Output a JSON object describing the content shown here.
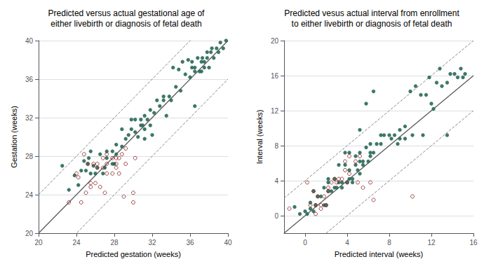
{
  "chart_data": [
    {
      "type": "scatter",
      "title": "Predicted versus actual gestational age of\neither livebirth or diagnosis of fetal death",
      "xlabel": "Predicted gestation (weeks)",
      "ylabel": "Gestation (weeks)",
      "xlim": [
        20,
        40
      ],
      "ylim": [
        20,
        40
      ],
      "xticks": [
        20,
        24,
        28,
        32,
        36,
        40
      ],
      "yticks": [
        20,
        24,
        28,
        32,
        36,
        40
      ],
      "grid": "y",
      "series": [
        {
          "type": "line",
          "color": "#5a5a5a",
          "line_style": "solid",
          "values": [
            [
              20,
              20
            ],
            [
              40,
              40
            ]
          ]
        },
        {
          "type": "line",
          "color": "#888888",
          "line_style": "dashed",
          "values": [
            [
              20,
              24
            ],
            [
              40,
              44
            ]
          ]
        },
        {
          "type": "line",
          "color": "#888888",
          "line_style": "dashed",
          "values": [
            [
              20,
              16
            ],
            [
              40,
              36
            ]
          ]
        },
        {
          "type": "scatter",
          "color": "#2d6b5a",
          "marker": "filled",
          "values": [
            [
              22.5,
              27.0
            ],
            [
              23.2,
              24.5
            ],
            [
              23.8,
              26.0
            ],
            [
              24.2,
              25.0
            ],
            [
              24.5,
              26.5
            ],
            [
              24.8,
              27.5
            ],
            [
              25.0,
              26.5
            ],
            [
              25.2,
              27.2
            ],
            [
              25.3,
              27.8
            ],
            [
              25.5,
              28.5
            ],
            [
              25.5,
              26.2
            ],
            [
              25.8,
              27.0
            ],
            [
              26.0,
              26.2
            ],
            [
              26.2,
              26.8
            ],
            [
              26.5,
              28.2
            ],
            [
              27.2,
              28.5
            ],
            [
              27.8,
              28.5
            ],
            [
              28.2,
              29.2
            ],
            [
              28.8,
              29.0
            ],
            [
              29.2,
              29.8
            ],
            [
              29.5,
              30.2
            ],
            [
              30.2,
              30.5
            ],
            [
              30.5,
              30.0
            ],
            [
              30.8,
              31.2
            ],
            [
              31.0,
              31.2
            ],
            [
              31.2,
              32.2
            ],
            [
              31.5,
              31.8
            ],
            [
              31.8,
              32.8
            ],
            [
              32.0,
              30.2
            ],
            [
              32.2,
              32.5
            ],
            [
              32.8,
              33.2
            ],
            [
              33.2,
              33.8
            ],
            [
              33.8,
              34.2
            ],
            [
              34.2,
              37.2
            ],
            [
              34.8,
              37.0
            ],
            [
              35.2,
              37.8
            ],
            [
              35.8,
              38.0
            ],
            [
              36.2,
              37.8
            ],
            [
              36.5,
              37.2
            ],
            [
              36.8,
              38.2
            ],
            [
              37.2,
              37.8
            ],
            [
              37.3,
              38.2
            ],
            [
              37.5,
              37.8
            ],
            [
              37.8,
              38.8
            ],
            [
              38.0,
              37.2
            ],
            [
              38.2,
              38.8
            ],
            [
              38.3,
              39.2
            ],
            [
              38.5,
              38.2
            ],
            [
              38.8,
              39.2
            ],
            [
              39.0,
              38.8
            ],
            [
              39.2,
              39.8
            ],
            [
              39.5,
              39.2
            ],
            [
              39.8,
              40.0
            ],
            [
              33.5,
              32.2
            ],
            [
              34.0,
              33.8
            ],
            [
              34.5,
              35.2
            ],
            [
              35.0,
              34.8
            ],
            [
              35.5,
              36.5
            ],
            [
              36.0,
              36.2
            ],
            [
              36.2,
              37.2
            ],
            [
              36.5,
              36.8
            ],
            [
              37.0,
              36.8
            ],
            [
              37.2,
              36.8
            ],
            [
              37.5,
              37.2
            ],
            [
              37.8,
              38.2
            ],
            [
              30.2,
              31.8
            ],
            [
              30.8,
              31.8
            ],
            [
              31.2,
              30.8
            ],
            [
              31.8,
              31.2
            ],
            [
              28.8,
              30.8
            ],
            [
              29.8,
              30.8
            ],
            [
              32.5,
              33.8
            ],
            [
              33.2,
              34.2
            ],
            [
              27.8,
              27.2
            ],
            [
              28.2,
              28.2
            ],
            [
              36.5,
              33.2
            ],
            [
              26.8,
              26.2
            ],
            [
              27.0,
              26.8
            ],
            [
              27.2,
              27.8
            ],
            [
              28.0,
              27.2
            ],
            [
              31.2,
              29.8
            ],
            [
              29.8,
              31.8
            ]
          ]
        },
        {
          "type": "scatter",
          "color": "#8b2020",
          "marker": "open",
          "values": [
            [
              23.2,
              23.2
            ],
            [
              24.2,
              25.8
            ],
            [
              24.0,
              26.2
            ],
            [
              24.5,
              23.2
            ],
            [
              24.8,
              28.2
            ],
            [
              25.0,
              24.2
            ],
            [
              25.2,
              27.2
            ],
            [
              25.5,
              24.8
            ],
            [
              25.5,
              25.2
            ],
            [
              25.8,
              27.2
            ],
            [
              26.0,
              25.2
            ],
            [
              26.2,
              26.8
            ],
            [
              26.2,
              27.2
            ],
            [
              26.5,
              24.8
            ],
            [
              26.8,
              26.8
            ],
            [
              26.8,
              27.8
            ],
            [
              27.0,
              24.2
            ],
            [
              27.2,
              26.2
            ],
            [
              27.2,
              27.2
            ],
            [
              27.2,
              28.2
            ],
            [
              27.8,
              26.2
            ],
            [
              27.8,
              27.8
            ],
            [
              28.2,
              26.8
            ],
            [
              28.2,
              27.2
            ],
            [
              28.2,
              27.8
            ],
            [
              28.5,
              26.2
            ],
            [
              28.5,
              27.8
            ],
            [
              28.8,
              28.2
            ],
            [
              29.0,
              23.8
            ],
            [
              29.2,
              27.2
            ],
            [
              29.2,
              28.8
            ],
            [
              30.0,
              23.2
            ],
            [
              30.0,
              24.2
            ],
            [
              30.2,
              27.8
            ]
          ]
        }
      ]
    },
    {
      "type": "scatter",
      "title": "Predicted vesus actual interval from enrollment\nto either livebirth or diagnosis of fetal death",
      "xlabel": "Predicted interval (weeks)",
      "ylabel": "Interval (weeks)",
      "xlim": [
        -2,
        16
      ],
      "ylim": [
        -2,
        20
      ],
      "xticks": [
        0,
        4,
        8,
        12,
        16
      ],
      "yticks": [
        0,
        4,
        8,
        12,
        16,
        20
      ],
      "grid": "y",
      "series": [
        {
          "type": "line",
          "color": "#5a5a5a",
          "line_style": "solid",
          "values": [
            [
              -2,
              -2
            ],
            [
              16,
              16
            ]
          ]
        },
        {
          "type": "line",
          "color": "#888888",
          "line_style": "dashed",
          "values": [
            [
              -2,
              2
            ],
            [
              16,
              20
            ]
          ]
        },
        {
          "type": "line",
          "color": "#888888",
          "line_style": "dashed",
          "values": [
            [
              -2,
              -6
            ],
            [
              16,
              12
            ]
          ]
        },
        {
          "type": "scatter",
          "color": "#2d6b5a",
          "marker": "filled",
          "values": [
            [
              -1.0,
              1.0
            ],
            [
              0.0,
              0.5
            ],
            [
              0.5,
              1.5
            ],
            [
              0.8,
              0.5
            ],
            [
              1.0,
              1.2
            ],
            [
              1.2,
              2.2
            ],
            [
              1.5,
              2.2
            ],
            [
              1.8,
              3.2
            ],
            [
              2.0,
              1.2
            ],
            [
              2.2,
              2.8
            ],
            [
              2.2,
              3.8
            ],
            [
              2.5,
              2.8
            ],
            [
              2.8,
              3.2
            ],
            [
              2.8,
              4.2
            ],
            [
              3.0,
              3.2
            ],
            [
              3.2,
              3.8
            ],
            [
              3.5,
              3.2
            ],
            [
              3.5,
              3.8
            ],
            [
              3.8,
              5.8
            ],
            [
              4.0,
              3.8
            ],
            [
              4.2,
              4.2
            ],
            [
              4.2,
              5.2
            ],
            [
              4.5,
              3.8
            ],
            [
              4.8,
              5.8
            ],
            [
              4.8,
              6.8
            ],
            [
              5.0,
              5.2
            ],
            [
              5.2,
              6.2
            ],
            [
              5.2,
              7.2
            ],
            [
              5.5,
              5.8
            ],
            [
              5.5,
              6.2
            ],
            [
              5.8,
              7.8
            ],
            [
              6.0,
              6.2
            ],
            [
              6.2,
              7.2
            ],
            [
              6.2,
              8.2
            ],
            [
              6.5,
              7.2
            ],
            [
              6.8,
              8.2
            ],
            [
              7.2,
              9.2
            ],
            [
              7.5,
              9.2
            ],
            [
              8.0,
              9.2
            ],
            [
              8.5,
              9.2
            ],
            [
              9.0,
              9.8
            ],
            [
              9.5,
              10.2
            ],
            [
              10.0,
              14.2
            ],
            [
              10.5,
              14.8
            ],
            [
              11.0,
              13.8
            ],
            [
              11.5,
              13.8
            ],
            [
              11.8,
              15.8
            ],
            [
              12.0,
              12.8
            ],
            [
              12.5,
              15.2
            ],
            [
              12.8,
              16.8
            ],
            [
              13.0,
              14.8
            ],
            [
              13.5,
              15.2
            ],
            [
              13.8,
              16.2
            ],
            [
              14.2,
              16.2
            ],
            [
              14.5,
              15.8
            ],
            [
              14.8,
              16.8
            ],
            [
              15.0,
              15.8
            ],
            [
              15.2,
              16.2
            ],
            [
              9.0,
              8.8
            ],
            [
              9.5,
              8.8
            ],
            [
              10.2,
              9.2
            ],
            [
              8.8,
              8.2
            ],
            [
              11.2,
              9.2
            ],
            [
              12.2,
              12.2
            ],
            [
              6.5,
              14.2
            ],
            [
              5.8,
              12.8
            ],
            [
              4.2,
              7.2
            ],
            [
              3.2,
              5.8
            ],
            [
              -0.5,
              0.2
            ],
            [
              0.2,
              0.2
            ],
            [
              7.2,
              8.2
            ],
            [
              8.2,
              8.8
            ],
            [
              5.2,
              4.8
            ],
            [
              6.2,
              6.8
            ],
            [
              3.8,
              7.2
            ],
            [
              5.2,
              9.8
            ],
            [
              4.5,
              4.2
            ],
            [
              2.2,
              4.2
            ],
            [
              0.8,
              2.8
            ],
            [
              1.8,
              1.2
            ],
            [
              0.5,
              0.8
            ],
            [
              13.5,
              9.2
            ]
          ]
        },
        {
          "type": "scatter",
          "color": "#8b2020",
          "marker": "open",
          "values": [
            [
              -1.5,
              0.8
            ],
            [
              0.2,
              3.8
            ],
            [
              0.5,
              1.2
            ],
            [
              0.8,
              2.8
            ],
            [
              1.0,
              0.2
            ],
            [
              1.0,
              1.2
            ],
            [
              1.2,
              2.2
            ],
            [
              1.5,
              0.8
            ],
            [
              1.5,
              1.2
            ],
            [
              1.8,
              2.2
            ],
            [
              2.0,
              1.2
            ],
            [
              2.2,
              2.8
            ],
            [
              2.2,
              3.2
            ],
            [
              2.5,
              3.8
            ],
            [
              2.8,
              4.2
            ],
            [
              3.0,
              3.8
            ],
            [
              3.2,
              4.2
            ],
            [
              3.5,
              4.2
            ],
            [
              3.8,
              5.2
            ],
            [
              3.8,
              6.2
            ],
            [
              4.0,
              3.8
            ],
            [
              4.2,
              4.8
            ],
            [
              4.2,
              6.8
            ],
            [
              4.8,
              6.2
            ],
            [
              5.0,
              3.8
            ],
            [
              5.2,
              6.8
            ],
            [
              5.5,
              3.2
            ],
            [
              6.2,
              3.8
            ],
            [
              6.5,
              1.8
            ],
            [
              10.2,
              2.2
            ]
          ]
        }
      ]
    }
  ]
}
